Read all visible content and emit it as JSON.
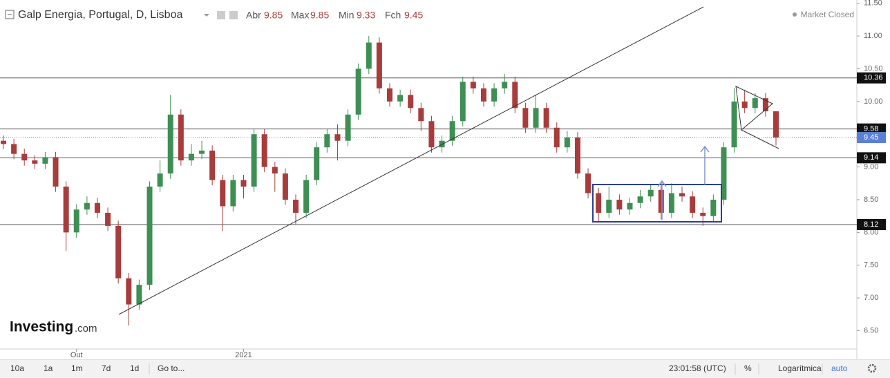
{
  "chart_data": {
    "type": "candlestick",
    "title": "Galp Energia, Portugal, D, Lisboa",
    "ohlc_labels": [
      "Abr",
      "Max",
      "Min",
      "Fch"
    ],
    "status": "Market Closed",
    "categories": [
      null,
      null,
      null,
      null,
      null,
      null,
      null,
      "Out",
      null,
      null,
      null,
      null,
      null,
      null,
      null,
      null,
      null,
      null,
      null,
      null,
      null,
      null,
      null,
      "2021",
      null,
      null,
      null,
      null,
      null,
      null,
      null,
      null,
      null,
      null,
      null,
      null,
      null,
      null,
      null,
      null,
      null,
      null,
      null,
      null,
      null,
      null,
      null,
      null,
      null,
      null,
      null,
      null,
      null,
      null,
      null,
      null,
      null,
      null,
      null,
      null,
      null,
      null,
      null,
      null,
      null,
      null,
      null,
      null,
      null,
      null,
      null,
      null,
      null,
      null,
      null
    ],
    "open": [
      9.4,
      9.35,
      9.2,
      9.1,
      9.05,
      9.15,
      8.7,
      8.0,
      8.35,
      8.45,
      8.3,
      8.1,
      7.3,
      6.9,
      7.2,
      8.7,
      8.9,
      9.8,
      9.1,
      9.2,
      9.25,
      8.8,
      8.4,
      8.8,
      8.7,
      9.5,
      9.0,
      8.9,
      8.5,
      8.3,
      8.8,
      9.3,
      9.5,
      9.4,
      9.8,
      10.5,
      10.9,
      10.2,
      10.0,
      10.1,
      9.9,
      9.7,
      9.3,
      9.4,
      9.7,
      10.3,
      10.2,
      10.0,
      10.2,
      10.3,
      9.9,
      9.6,
      9.9,
      9.6,
      9.3,
      9.45,
      8.9,
      8.6,
      8.3,
      8.5,
      8.35,
      8.45,
      8.55,
      8.65,
      8.3,
      8.6,
      8.55,
      8.3,
      8.25,
      8.5,
      9.3,
      10.0,
      9.9,
      10.05,
      9.85
    ],
    "high": [
      9.48,
      9.43,
      9.28,
      9.18,
      9.23,
      9.23,
      8.78,
      8.43,
      8.55,
      8.53,
      8.38,
      8.18,
      7.38,
      7.28,
      8.78,
      9.1,
      10.1,
      9.88,
      9.35,
      9.4,
      9.33,
      8.88,
      8.88,
      8.88,
      9.58,
      9.58,
      9.08,
      8.98,
      8.58,
      8.88,
      9.38,
      9.58,
      9.65,
      9.88,
      10.58,
      11.0,
      10.98,
      10.28,
      10.18,
      10.18,
      9.98,
      9.78,
      9.48,
      9.78,
      10.38,
      10.38,
      10.28,
      10.28,
      10.42,
      10.38,
      9.98,
      10.1,
      9.98,
      9.68,
      9.55,
      9.53,
      8.98,
      8.68,
      8.7,
      8.58,
      8.53,
      8.65,
      8.73,
      8.73,
      8.75,
      8.7,
      8.63,
      8.38,
      8.58,
      9.38,
      10.2,
      10.18,
      10.13,
      10.13,
      9.85
    ],
    "low": [
      9.27,
      9.12,
      9.02,
      8.97,
      8.97,
      8.62,
      7.72,
      7.92,
      8.27,
      8.22,
      8.02,
      7.22,
      6.58,
      6.82,
      7.12,
      8.62,
      8.82,
      9.02,
      9.02,
      9.12,
      8.72,
      8.02,
      8.32,
      8.52,
      8.62,
      8.92,
      8.62,
      8.42,
      8.12,
      8.22,
      8.72,
      9.22,
      9.1,
      9.32,
      9.72,
      10.42,
      10.12,
      9.92,
      9.92,
      9.82,
      9.55,
      9.22,
      9.22,
      9.32,
      9.62,
      10.12,
      9.92,
      9.92,
      10.12,
      9.82,
      9.52,
      9.52,
      9.52,
      9.22,
      9.22,
      8.82,
      8.52,
      8.15,
      8.22,
      8.27,
      8.27,
      8.37,
      8.47,
      8.2,
      8.22,
      8.47,
      8.22,
      8.1,
      8.17,
      8.42,
      9.22,
      9.82,
      9.82,
      9.77,
      9.33
    ],
    "close": [
      9.35,
      9.2,
      9.1,
      9.05,
      9.15,
      8.7,
      8.0,
      8.35,
      8.45,
      8.3,
      8.1,
      7.3,
      6.9,
      7.2,
      8.7,
      8.9,
      9.8,
      9.1,
      9.2,
      9.25,
      8.8,
      8.4,
      8.8,
      8.7,
      9.5,
      9.0,
      8.9,
      8.5,
      8.3,
      8.8,
      9.3,
      9.5,
      9.4,
      9.8,
      10.5,
      10.9,
      10.2,
      10.0,
      10.1,
      9.9,
      9.7,
      9.3,
      9.4,
      9.7,
      10.3,
      10.2,
      10.0,
      10.2,
      10.3,
      9.9,
      9.6,
      9.9,
      9.6,
      9.3,
      9.45,
      8.9,
      8.6,
      8.3,
      8.5,
      8.35,
      8.45,
      8.55,
      8.65,
      8.3,
      8.6,
      8.55,
      8.3,
      8.25,
      8.5,
      9.3,
      10.0,
      9.9,
      10.05,
      9.85,
      9.45
    ],
    "up_color": "#3d8f54",
    "down_color": "#a83c3c",
    "ylim": [
      6.22,
      11.55
    ],
    "yticks": [
      {
        "value": 6.5,
        "label": "6.50"
      },
      {
        "value": 7,
        "label": "7.00"
      },
      {
        "value": 7.5,
        "label": "7.50"
      },
      {
        "value": 8,
        "label": "8.00"
      },
      {
        "value": 8.5,
        "label": "8.50"
      },
      {
        "value": 9,
        "label": "9.00"
      },
      {
        "value": 9.5,
        "label": "9.50"
      },
      {
        "value": 10,
        "label": "10.00"
      },
      {
        "value": 10.5,
        "label": "10.50"
      },
      {
        "value": 11,
        "label": "11.00"
      },
      {
        "value": 11.5,
        "label": "11.50"
      }
    ],
    "levels": [
      10.36,
      9.58,
      9.14,
      8.12
    ],
    "last_color": "#5b7fd6"
  },
  "logo": {
    "brand": "Investing",
    "suffix": ".com"
  },
  "toolbar": {
    "ranges": [
      "10a",
      "1a",
      "1m",
      "7d",
      "1d"
    ],
    "goto": "Go to...",
    "time": "23:01:58 (UTC)",
    "percent": "%",
    "scale": "Logarítmica",
    "auto": "auto"
  }
}
